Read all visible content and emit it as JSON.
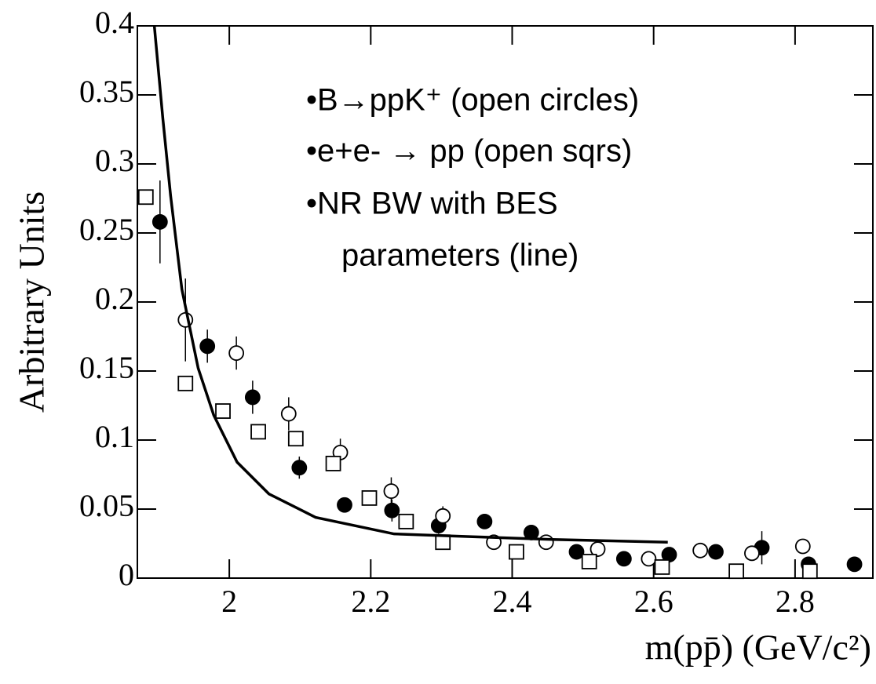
{
  "chart_data": {
    "type": "scatter",
    "xlabel": "m(pp̄) (GeV/c²)",
    "ylabel": "Arbitrary Units",
    "annotations": [
      "•B→ppK⁺   (open circles)",
      "•e+e- → pp (open sqrs)",
      "•NR BW with BES",
      "parameters (line)"
    ],
    "xlim": [
      1.87,
      2.91
    ],
    "ylim": [
      0,
      0.4
    ],
    "xticks": [
      2,
      2.2,
      2.4,
      2.6,
      2.8
    ],
    "yticks": [
      0,
      0.05,
      0.1,
      0.15,
      0.2,
      0.25,
      0.3,
      0.35,
      0.4
    ],
    "series": [
      {
        "marker": "filled-circle",
        "color": "#000000",
        "x": [
          1.902,
          1.969,
          2.033,
          2.099,
          2.163,
          2.23,
          2.296,
          2.361,
          2.427,
          2.491,
          2.558,
          2.622,
          2.688,
          2.753,
          2.819,
          2.884
        ],
        "values": [
          0.258,
          0.168,
          0.131,
          0.08,
          0.053,
          0.049,
          0.038,
          0.041,
          0.033,
          0.019,
          0.014,
          0.017,
          0.019,
          0.022,
          0.01,
          0.01
        ],
        "errors": [
          0.03,
          0.012,
          0.012,
          0.008,
          0.005,
          0.008,
          0.006,
          0.005,
          0.005,
          0.005,
          0.004,
          0.005,
          0.005,
          0.012,
          0.005,
          0.004
        ]
      },
      {
        "marker": "open-circle",
        "color": "#000000",
        "x": [
          1.938,
          2.01,
          2.084,
          2.157,
          2.229,
          2.302,
          2.374,
          2.448,
          2.521,
          2.593,
          2.666,
          2.739,
          2.811
        ],
        "values": [
          0.187,
          0.163,
          0.119,
          0.091,
          0.063,
          0.045,
          0.026,
          0.026,
          0.021,
          0.014,
          0.02,
          0.018,
          0.023
        ],
        "errors": [
          0.03,
          0.012,
          0.012,
          0.01,
          0.01,
          0.007,
          0.005,
          0.005,
          0.004,
          0.004,
          0.004,
          0.004,
          0.004
        ]
      },
      {
        "marker": "open-square",
        "color": "#000000",
        "x": [
          1.882,
          1.938,
          1.991,
          2.041,
          2.094,
          2.147,
          2.198,
          2.25,
          2.302,
          2.406,
          2.509,
          2.612,
          2.717,
          2.821
        ],
        "values": [
          0.276,
          0.141,
          0.121,
          0.106,
          0.101,
          0.083,
          0.058,
          0.041,
          0.026,
          0.019,
          0.012,
          0.008,
          0.005,
          0.005
        ]
      },
      {
        "marker": "line",
        "color": "#000000",
        "x": [
          1.894,
          1.906,
          1.917,
          1.933,
          1.956,
          1.978,
          2.011,
          2.056,
          2.122,
          2.233,
          2.344,
          2.456,
          2.62
        ],
        "values": [
          0.4,
          0.333,
          0.277,
          0.209,
          0.152,
          0.118,
          0.084,
          0.061,
          0.044,
          0.032,
          0.03,
          0.028,
          0.026
        ]
      }
    ]
  }
}
